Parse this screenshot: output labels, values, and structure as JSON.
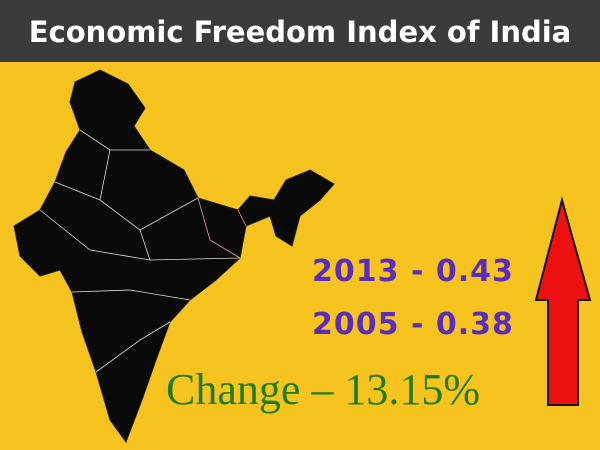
{
  "header": {
    "title": "Economic Freedom Index of India"
  },
  "stats": [
    "2013 - 0.43",
    "2005 - 0.38"
  ],
  "change": "Change – 13.15%"
}
